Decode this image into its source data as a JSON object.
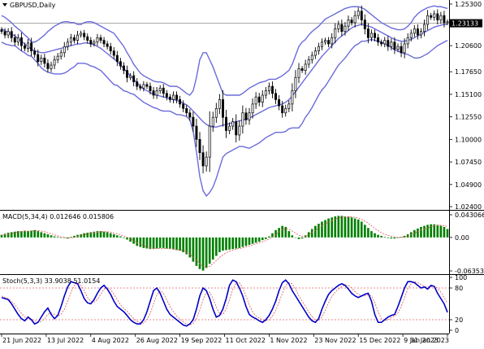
{
  "window": {
    "symbol_label": "GBPUSD,Daily",
    "menu_icon": "triangle-down-icon"
  },
  "colors": {
    "up_candle": "#000000",
    "down_candle": "#000000",
    "bollinger": "#6b6bdc",
    "macd_hist": "#008000",
    "macd_signal": "#e06666",
    "stoch_main": "#0000c8",
    "stoch_signal": "#e06666",
    "levels": "#e06666",
    "price_line": "#a0a0a0",
    "separator": "#000000"
  },
  "price_axis": {
    "ticks": [
      "1.25300",
      "1.22950",
      "1.20600",
      "1.17650",
      "1.15100",
      "1.12550",
      "1.10000",
      "1.07450",
      "1.04900",
      "1.02400"
    ],
    "current_price": "1.23133"
  },
  "macd": {
    "label": "MACD(5,34,4) 0.012646 0.015806",
    "ticks": [
      "0.043066",
      "0.00",
      "-0.063534"
    ]
  },
  "stoch": {
    "label": "Stoch(5,3,3) 33.9038 51.0154",
    "ticks": [
      "100",
      "80",
      "20",
      "0"
    ]
  },
  "time_axis": {
    "labels": [
      "21 Jun 2022",
      "13 Jul 2022",
      "4 Aug 2022",
      "26 Aug 2022",
      "19 Sep 2022",
      "11 Oct 2022",
      "1 Nov 2022",
      "23 Nov 2022",
      "15 Dec 2022",
      "9 Jan 2023",
      "31 Jan 2023"
    ]
  },
  "chart_data": [
    {
      "type": "candlestick",
      "title": "GBPUSD,Daily",
      "indicator": "Bollinger Bands",
      "ylim": [
        1.024,
        1.253
      ],
      "x_start": "21 Jun 2022",
      "x_end": "31 Jan 2023",
      "current_price": 1.23133,
      "close": [
        1.222,
        1.218,
        1.222,
        1.215,
        1.21,
        1.215,
        1.206,
        1.203,
        1.209,
        1.2,
        1.196,
        1.188,
        1.192,
        1.186,
        1.18,
        1.184,
        1.19,
        1.194,
        1.198,
        1.205,
        1.21,
        1.215,
        1.212,
        1.218,
        1.22,
        1.216,
        1.212,
        1.208,
        1.21,
        1.215,
        1.212,
        1.208,
        1.205,
        1.2,
        1.195,
        1.188,
        1.183,
        1.178,
        1.17,
        1.172,
        1.165,
        1.16,
        1.158,
        1.162,
        1.16,
        1.155,
        1.15,
        1.155,
        1.158,
        1.152,
        1.148,
        1.145,
        1.15,
        1.145,
        1.14,
        1.135,
        1.13,
        1.125,
        1.115,
        1.1,
        1.085,
        1.07,
        1.08,
        1.115,
        1.125,
        1.135,
        1.145,
        1.125,
        1.11,
        1.115,
        1.12,
        1.105,
        1.115,
        1.13,
        1.122,
        1.13,
        1.14,
        1.148,
        1.142,
        1.15,
        1.155,
        1.16,
        1.152,
        1.145,
        1.138,
        1.13,
        1.135,
        1.14,
        1.155,
        1.17,
        1.18,
        1.178,
        1.185,
        1.19,
        1.195,
        1.2,
        1.205,
        1.21,
        1.212,
        1.208,
        1.215,
        1.225,
        1.23,
        1.222,
        1.228,
        1.235,
        1.232,
        1.24,
        1.245,
        1.235,
        1.225,
        1.215,
        1.22,
        1.215,
        1.21,
        1.208,
        1.212,
        1.205,
        1.21,
        1.202,
        1.205,
        1.198,
        1.208,
        1.215,
        1.22,
        1.225,
        1.218,
        1.222,
        1.23,
        1.24,
        1.238,
        1.242,
        1.235,
        1.24,
        1.232,
        1.233
      ],
      "bb_upper": [
        1.24,
        1.238,
        1.235,
        1.232,
        1.228,
        1.225,
        1.222,
        1.218,
        1.215,
        1.21,
        1.21,
        1.212,
        1.215,
        1.218,
        1.222,
        1.225,
        1.228,
        1.23,
        1.232,
        1.233,
        1.233,
        1.232,
        1.232,
        1.23,
        1.23,
        1.232,
        1.233,
        1.233,
        1.232,
        1.23,
        1.228,
        1.226,
        1.224,
        1.222,
        1.22,
        1.215,
        1.21,
        1.205,
        1.198,
        1.192,
        1.185,
        1.18,
        1.175,
        1.172,
        1.17,
        1.168,
        1.166,
        1.165,
        1.165,
        1.164,
        1.162,
        1.16,
        1.16,
        1.16,
        1.158,
        1.155,
        1.152,
        1.15,
        1.155,
        1.17,
        1.19,
        1.198,
        1.198,
        1.19,
        1.182,
        1.172,
        1.162,
        1.152,
        1.15,
        1.15,
        1.15,
        1.15,
        1.15,
        1.152,
        1.155,
        1.158,
        1.16,
        1.162,
        1.164,
        1.165,
        1.166,
        1.168,
        1.168,
        1.168,
        1.17,
        1.172,
        1.175,
        1.178,
        1.185,
        1.195,
        1.205,
        1.21,
        1.213,
        1.218,
        1.222,
        1.225,
        1.228,
        1.232,
        1.236,
        1.238,
        1.24,
        1.242,
        1.244,
        1.246,
        1.248,
        1.249,
        1.25,
        1.25,
        1.25,
        1.249,
        1.247,
        1.244,
        1.241,
        1.238,
        1.235,
        1.232,
        1.23,
        1.228,
        1.226,
        1.225,
        1.224,
        1.224,
        1.225,
        1.228,
        1.232,
        1.238,
        1.242,
        1.245,
        1.247,
        1.249,
        1.25,
        1.251,
        1.25,
        1.25,
        1.249,
        1.248
      ],
      "bb_mid": [
        1.225,
        1.223,
        1.221,
        1.219,
        1.217,
        1.214,
        1.211,
        1.208,
        1.205,
        1.202,
        1.2,
        1.199,
        1.198,
        1.198,
        1.199,
        1.2,
        1.201,
        1.202,
        1.203,
        1.204,
        1.205,
        1.206,
        1.207,
        1.208,
        1.208,
        1.209,
        1.209,
        1.208,
        1.207,
        1.205,
        1.203,
        1.2,
        1.197,
        1.194,
        1.191,
        1.188,
        1.184,
        1.18,
        1.176,
        1.172,
        1.168,
        1.164,
        1.16,
        1.157,
        1.155,
        1.153,
        1.151,
        1.15,
        1.149,
        1.148,
        1.147,
        1.146,
        1.145,
        1.144,
        1.143,
        1.141,
        1.139,
        1.136,
        1.132,
        1.128,
        1.124,
        1.12,
        1.117,
        1.115,
        1.114,
        1.114,
        1.115,
        1.116,
        1.117,
        1.118,
        1.119,
        1.12,
        1.121,
        1.122,
        1.123,
        1.124,
        1.126,
        1.128,
        1.13,
        1.132,
        1.134,
        1.136,
        1.137,
        1.138,
        1.139,
        1.14,
        1.142,
        1.145,
        1.149,
        1.154,
        1.159,
        1.164,
        1.169,
        1.174,
        1.179,
        1.184,
        1.189,
        1.194,
        1.198,
        1.202,
        1.206,
        1.21,
        1.214,
        1.217,
        1.22,
        1.223,
        1.226,
        1.228,
        1.229,
        1.23,
        1.229,
        1.228,
        1.227,
        1.225,
        1.223,
        1.221,
        1.219,
        1.217,
        1.215,
        1.213,
        1.212,
        1.211,
        1.211,
        1.212,
        1.213,
        1.215,
        1.217,
        1.219,
        1.221,
        1.223,
        1.225,
        1.227,
        1.228,
        1.229,
        1.23,
        1.23
      ],
      "bb_lower": [
        1.21,
        1.208,
        1.207,
        1.206,
        1.206,
        1.203,
        1.2,
        1.198,
        1.195,
        1.194,
        1.19,
        1.186,
        1.181,
        1.178,
        1.176,
        1.175,
        1.174,
        1.174,
        1.174,
        1.175,
        1.177,
        1.18,
        1.182,
        1.186,
        1.186,
        1.186,
        1.185,
        1.183,
        1.182,
        1.18,
        1.178,
        1.174,
        1.17,
        1.166,
        1.162,
        1.161,
        1.158,
        1.155,
        1.154,
        1.152,
        1.151,
        1.148,
        1.145,
        1.142,
        1.14,
        1.138,
        1.136,
        1.135,
        1.133,
        1.132,
        1.132,
        1.132,
        1.13,
        1.128,
        1.128,
        1.127,
        1.126,
        1.122,
        1.109,
        1.086,
        1.058,
        1.042,
        1.036,
        1.04,
        1.046,
        1.056,
        1.068,
        1.08,
        1.084,
        1.086,
        1.088,
        1.09,
        1.092,
        1.092,
        1.091,
        1.09,
        1.092,
        1.094,
        1.096,
        1.099,
        1.102,
        1.104,
        1.106,
        1.108,
        1.108,
        1.108,
        1.109,
        1.112,
        1.113,
        1.113,
        1.113,
        1.118,
        1.125,
        1.13,
        1.136,
        1.143,
        1.15,
        1.156,
        1.16,
        1.166,
        1.172,
        1.178,
        1.184,
        1.188,
        1.192,
        1.197,
        1.202,
        1.206,
        1.208,
        1.211,
        1.211,
        1.212,
        1.213,
        1.212,
        1.211,
        1.21,
        1.208,
        1.206,
        1.204,
        1.201,
        1.2,
        1.198,
        1.197,
        1.196,
        1.194,
        1.192,
        1.192,
        1.193,
        1.195,
        1.197,
        1.2,
        1.203,
        1.206,
        1.208,
        1.21,
        1.212
      ]
    },
    {
      "type": "bar",
      "title": "MACD(5,34,4) 0.012646 0.015806",
      "ylim": [
        -0.063534,
        0.043066
      ],
      "histogram": [
        0.005,
        0.007,
        0.009,
        0.01,
        0.011,
        0.012,
        0.012,
        0.013,
        0.012,
        0.013,
        0.014,
        0.012,
        0.01,
        0.008,
        0.006,
        0.004,
        0.002,
        0.001,
        0.0,
        -0.001,
        -0.002,
        0.001,
        0.003,
        0.005,
        0.006,
        0.008,
        0.009,
        0.01,
        0.011,
        0.012,
        0.012,
        0.011,
        0.01,
        0.008,
        0.006,
        0.004,
        0.002,
        -0.001,
        -0.004,
        -0.008,
        -0.012,
        -0.016,
        -0.018,
        -0.02,
        -0.021,
        -0.022,
        -0.022,
        -0.021,
        -0.02,
        -0.02,
        -0.021,
        -0.022,
        -0.023,
        -0.024,
        -0.025,
        -0.028,
        -0.032,
        -0.038,
        -0.046,
        -0.054,
        -0.06,
        -0.063,
        -0.058,
        -0.05,
        -0.042,
        -0.035,
        -0.028,
        -0.025,
        -0.024,
        -0.023,
        -0.022,
        -0.021,
        -0.02,
        -0.018,
        -0.016,
        -0.014,
        -0.012,
        -0.01,
        -0.008,
        -0.005,
        -0.003,
        0.002,
        0.008,
        0.014,
        0.018,
        0.022,
        0.02,
        0.012,
        0.004,
        0.0,
        -0.003,
        -0.002,
        0.004,
        0.01,
        0.016,
        0.022,
        0.026,
        0.03,
        0.033,
        0.036,
        0.038,
        0.04,
        0.041,
        0.041,
        0.04,
        0.04,
        0.038,
        0.036,
        0.034,
        0.03,
        0.024,
        0.018,
        0.012,
        0.008,
        0.005,
        0.003,
        0.001,
        -0.001,
        -0.002,
        -0.002,
        -0.001,
        0.001,
        0.003,
        0.006,
        0.01,
        0.014,
        0.017,
        0.02,
        0.022,
        0.024,
        0.025,
        0.025,
        0.024,
        0.022,
        0.02,
        0.016
      ],
      "signal": [
        0.004,
        0.005,
        0.006,
        0.007,
        0.009,
        0.01,
        0.011,
        0.012,
        0.012,
        0.012,
        0.013,
        0.013,
        0.012,
        0.011,
        0.009,
        0.007,
        0.005,
        0.003,
        0.001,
        0.0,
        -0.001,
        -0.001,
        0.0,
        0.002,
        0.004,
        0.005,
        0.007,
        0.008,
        0.009,
        0.01,
        0.011,
        0.011,
        0.011,
        0.01,
        0.008,
        0.007,
        0.005,
        0.003,
        0.0,
        -0.003,
        -0.006,
        -0.01,
        -0.013,
        -0.016,
        -0.018,
        -0.02,
        -0.021,
        -0.021,
        -0.021,
        -0.021,
        -0.021,
        -0.021,
        -0.022,
        -0.023,
        -0.024,
        -0.025,
        -0.028,
        -0.032,
        -0.037,
        -0.043,
        -0.05,
        -0.055,
        -0.057,
        -0.055,
        -0.05,
        -0.044,
        -0.038,
        -0.033,
        -0.029,
        -0.026,
        -0.024,
        -0.022,
        -0.021,
        -0.02,
        -0.018,
        -0.016,
        -0.014,
        -0.012,
        -0.01,
        -0.008,
        -0.006,
        -0.003,
        0.001,
        0.005,
        0.01,
        0.015,
        0.017,
        0.016,
        0.012,
        0.008,
        0.004,
        0.002,
        0.002,
        0.005,
        0.009,
        0.014,
        0.018,
        0.022,
        0.026,
        0.029,
        0.032,
        0.035,
        0.037,
        0.039,
        0.039,
        0.039,
        0.039,
        0.038,
        0.037,
        0.034,
        0.031,
        0.027,
        0.022,
        0.017,
        0.013,
        0.009,
        0.006,
        0.004,
        0.002,
        0.001,
        0.0,
        0.0,
        0.001,
        0.003,
        0.005,
        0.008,
        0.011,
        0.014,
        0.016,
        0.018,
        0.02,
        0.022,
        0.023,
        0.023,
        0.022,
        0.021
      ]
    },
    {
      "type": "line",
      "title": "Stoch(5,3,3) 33.9038 51.0154",
      "ylim": [
        0,
        100
      ],
      "levels": [
        80,
        20
      ],
      "main": [
        62,
        60,
        58,
        50,
        40,
        30,
        22,
        18,
        25,
        20,
        12,
        15,
        25,
        35,
        42,
        30,
        22,
        28,
        45,
        65,
        82,
        92,
        90,
        88,
        75,
        60,
        52,
        50,
        58,
        70,
        80,
        85,
        78,
        68,
        55,
        45,
        40,
        35,
        28,
        20,
        15,
        12,
        12,
        20,
        35,
        55,
        75,
        80,
        70,
        55,
        40,
        30,
        25,
        20,
        15,
        10,
        8,
        12,
        20,
        40,
        65,
        80,
        75,
        60,
        40,
        25,
        28,
        40,
        60,
        85,
        95,
        92,
        80,
        65,
        45,
        30,
        25,
        22,
        18,
        15,
        20,
        28,
        40,
        55,
        75,
        90,
        95,
        88,
        75,
        65,
        55,
        45,
        35,
        25,
        18,
        15,
        22,
        40,
        55,
        68,
        75,
        80,
        85,
        88,
        85,
        78,
        70,
        65,
        62,
        65,
        68,
        70,
        55,
        30,
        15,
        15,
        20,
        25,
        28,
        30,
        45,
        62,
        80,
        92,
        92,
        90,
        85,
        80,
        82,
        78,
        85,
        83,
        70,
        60,
        50,
        34
      ],
      "signal": [
        65,
        62,
        60,
        55,
        48,
        40,
        32,
        25,
        22,
        21,
        18,
        15,
        17,
        22,
        30,
        33,
        30,
        27,
        30,
        40,
        55,
        72,
        85,
        90,
        85,
        75,
        62,
        55,
        53,
        58,
        68,
        78,
        80,
        77,
        68,
        58,
        48,
        41,
        36,
        29,
        22,
        17,
        14,
        14,
        20,
        32,
        50,
        67,
        75,
        70,
        58,
        45,
        35,
        27,
        21,
        16,
        12,
        10,
        13,
        22,
        38,
        58,
        72,
        72,
        60,
        44,
        32,
        30,
        40,
        58,
        78,
        90,
        90,
        80,
        65,
        48,
        35,
        27,
        23,
        20,
        18,
        20,
        27,
        38,
        53,
        70,
        85,
        90,
        88,
        78,
        65,
        55,
        45,
        35,
        26,
        20,
        18,
        25,
        38,
        52,
        64,
        72,
        78,
        83,
        86,
        85,
        80,
        73,
        68,
        65,
        65,
        67,
        65,
        52,
        35,
        22,
        18,
        20,
        24,
        27,
        33,
        45,
        62,
        78,
        88,
        92,
        90,
        87,
        83,
        82,
        82,
        83,
        80,
        72,
        62,
        51
      ]
    }
  ]
}
